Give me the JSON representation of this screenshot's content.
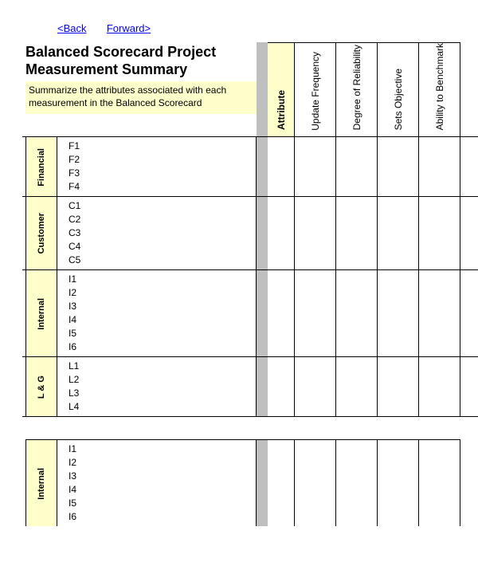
{
  "nav": {
    "back": "<Back",
    "forward": "Forward>"
  },
  "header": {
    "title": "Balanced Scorecard Project Measurement Summary",
    "subtitle": "Summarize the attributes associated with each measurement in the Balanced Scorecard",
    "attribute_label": "Attribute",
    "columns": [
      "Update Frequency",
      "Degree of Reliability",
      "Sets Objective",
      "Ability to Benchmark"
    ]
  },
  "groups": [
    {
      "category": "Financial",
      "items": [
        "F1",
        "F2",
        "F3",
        "F4"
      ]
    },
    {
      "category": "Customer",
      "items": [
        "C1",
        "C2",
        "C3",
        "C4",
        "C5"
      ]
    },
    {
      "category": "Internal",
      "items": [
        "I1",
        "I2",
        "I3",
        "I4",
        "I5",
        "I6"
      ]
    },
    {
      "category": "L & G",
      "items": [
        "L1",
        "L2",
        "L3",
        "L4"
      ]
    }
  ],
  "second_groups": [
    {
      "category": "Internal",
      "items": [
        "I1",
        "I2",
        "I3",
        "I4",
        "I5",
        "I6"
      ]
    }
  ],
  "colors": {
    "highlight": "#ffffcc",
    "gap": "#bfbfbf",
    "link": "#0000ee",
    "border": "#000000",
    "background": "#ffffff"
  }
}
